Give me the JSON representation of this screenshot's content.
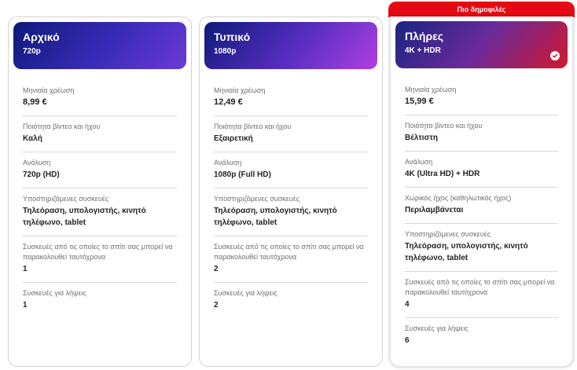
{
  "badge": "Πιο δημοφιλές",
  "plans": [
    {
      "name": "Αρχικό",
      "resolution_tag": "720p",
      "rows": [
        {
          "label": "Μηνιαία χρέωση",
          "value": "8,99 €"
        },
        {
          "label": "Ποιότητα βίντεο και ήχου",
          "value": "Καλή"
        },
        {
          "label": "Ανάλυση",
          "value": "720p (HD)"
        },
        {
          "label": "Υποστηριζόμενες συσκευές",
          "value": "Τηλεόραση, υπολογιστής, κινητό τηλέφωνο, tablet"
        },
        {
          "label": "Συσκευές από τις οποίες το σπίτι σας μπορεί να παρακολουθεί ταυτόχρονα",
          "value": "1"
        },
        {
          "label": "Συσκευές για λήψεις",
          "value": "1"
        }
      ]
    },
    {
      "name": "Τυπικό",
      "resolution_tag": "1080p",
      "rows": [
        {
          "label": "Μηνιαία χρέωση",
          "value": "12,49 €"
        },
        {
          "label": "Ποιότητα βίντεο και ήχου",
          "value": "Εξαιρετική"
        },
        {
          "label": "Ανάλυση",
          "value": "1080p (Full HD)"
        },
        {
          "label": "Υποστηριζόμενες συσκευές",
          "value": "Τηλεόραση, υπολογιστής, κινητό τηλέφωνο, tablet"
        },
        {
          "label": "Συσκευές από τις οποίες το σπίτι σας μπορεί να παρακολουθεί ταυτόχρονα",
          "value": "2"
        },
        {
          "label": "Συσκευές για λήψεις",
          "value": "2"
        }
      ]
    },
    {
      "name": "Πλήρες",
      "resolution_tag": "4K + HDR",
      "selected_icon": "check-circle-icon",
      "rows": [
        {
          "label": "Μηνιαία χρέωση",
          "value": "15,99 €"
        },
        {
          "label": "Ποιότητα βίντεο και ήχου",
          "value": "Βέλτιστη"
        },
        {
          "label": "Ανάλυση",
          "value": "4K (Ultra HD) + HDR"
        },
        {
          "label": "Χωρικός ήχος (καθηλωτικός ήχος)",
          "value": "Περιλαμβάνεται"
        },
        {
          "label": "Υποστηριζόμενες συσκευές",
          "value": "Τηλεόραση, υπολογιστής, κινητό τηλέφωνο, tablet"
        },
        {
          "label": "Συσκευές από τις οποίες το σπίτι σας μπορεί να παρακολουθεί ταυτόχρονα",
          "value": "4"
        },
        {
          "label": "Συσκευές για λήψεις",
          "value": "6"
        }
      ]
    }
  ],
  "colors": {
    "accent_red": "#e50914",
    "divider": "#d8d8d8",
    "label_gray": "#6e6e6e"
  }
}
